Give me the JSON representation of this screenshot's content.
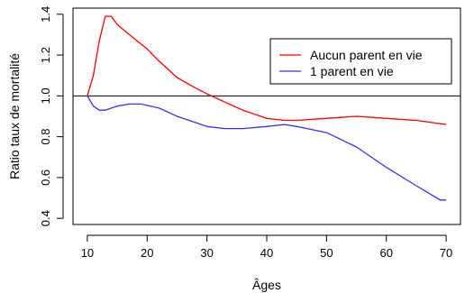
{
  "chart_data": {
    "type": "line",
    "xlabel": "Âges",
    "ylabel": "Ratio taux de mortalité",
    "xlim": [
      7.6,
      72.4
    ],
    "ylim": [
      0.37,
      1.43
    ],
    "x_ticks": [
      10,
      20,
      30,
      40,
      50,
      60,
      70
    ],
    "y_ticks": [
      0.4,
      0.6,
      0.8,
      1.0,
      1.2,
      1.4
    ],
    "x_tick_labels": [
      "10",
      "20",
      "30",
      "40",
      "50",
      "60",
      "70"
    ],
    "y_tick_labels": [
      "0.4",
      "0.6",
      "0.8",
      "1.0",
      "1.2",
      "1.4"
    ],
    "reference_line": 1.0,
    "legend_position": "top-right",
    "grid": false,
    "series": [
      {
        "name": "Aucun parent en vie",
        "color": "#ff0000",
        "x": [
          10,
          11,
          12,
          13,
          14,
          15,
          17,
          20,
          22,
          25,
          28,
          30,
          33,
          36,
          40,
          43,
          45,
          50,
          55,
          60,
          65,
          70
        ],
        "y": [
          1.0,
          1.1,
          1.27,
          1.39,
          1.39,
          1.35,
          1.3,
          1.23,
          1.17,
          1.09,
          1.04,
          1.01,
          0.97,
          0.93,
          0.89,
          0.88,
          0.88,
          0.89,
          0.9,
          0.89,
          0.88,
          0.86
        ]
      },
      {
        "name": "1 parent en vie",
        "color": "#3333ff",
        "x": [
          10,
          11,
          12,
          13,
          14,
          15,
          17,
          19,
          22,
          25,
          30,
          33,
          36,
          40,
          43,
          45,
          50,
          55,
          60,
          65,
          69,
          70
        ],
        "y": [
          1.0,
          0.95,
          0.93,
          0.93,
          0.94,
          0.95,
          0.96,
          0.96,
          0.94,
          0.9,
          0.85,
          0.84,
          0.84,
          0.85,
          0.86,
          0.85,
          0.82,
          0.75,
          0.65,
          0.56,
          0.49,
          0.49
        ]
      }
    ]
  }
}
